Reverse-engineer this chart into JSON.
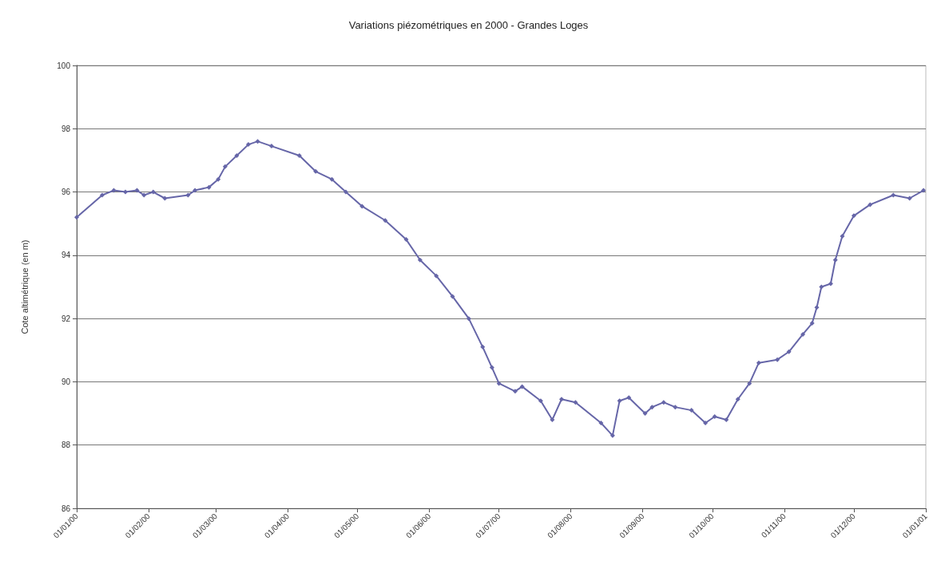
{
  "chart_data": {
    "type": "line",
    "title": "Variations piézométriques en 2000 - Grandes Loges",
    "ylabel": "Cote altimétrique (en m)",
    "x": [
      "2000-01-01",
      "2000-01-12",
      "2000-01-17",
      "2000-01-22",
      "2000-01-27",
      "2000-01-30",
      "2000-02-03",
      "2000-02-08",
      "2000-02-18",
      "2000-02-21",
      "2000-02-27",
      "2000-03-02",
      "2000-03-05",
      "2000-03-10",
      "2000-03-15",
      "2000-03-19",
      "2000-03-25",
      "2000-04-06",
      "2000-04-13",
      "2000-04-20",
      "2000-04-26",
      "2000-05-03",
      "2000-05-13",
      "2000-05-22",
      "2000-05-28",
      "2000-06-04",
      "2000-06-11",
      "2000-06-18",
      "2000-06-24",
      "2000-06-28",
      "2000-07-01",
      "2000-07-08",
      "2000-07-11",
      "2000-07-19",
      "2000-07-24",
      "2000-07-28",
      "2000-08-03",
      "2000-08-14",
      "2000-08-19",
      "2000-08-22",
      "2000-08-26",
      "2000-09-02",
      "2000-09-05",
      "2000-09-10",
      "2000-09-15",
      "2000-09-22",
      "2000-09-28",
      "2000-10-02",
      "2000-10-07",
      "2000-10-12",
      "2000-10-17",
      "2000-10-21",
      "2000-10-29",
      "2000-11-03",
      "2000-11-09",
      "2000-11-13",
      "2000-11-15",
      "2000-11-17",
      "2000-11-21",
      "2000-11-23",
      "2000-11-26",
      "2000-12-01",
      "2000-12-08",
      "2000-12-18",
      "2000-12-25",
      "2000-12-31"
    ],
    "series": [
      {
        "color": "#6666a8",
        "values": [
          95.2,
          95.9,
          96.05,
          96.0,
          96.05,
          95.9,
          96.0,
          95.8,
          95.9,
          96.05,
          96.15,
          96.4,
          96.8,
          97.15,
          97.5,
          97.6,
          97.45,
          97.15,
          96.65,
          96.4,
          96.0,
          95.55,
          95.1,
          94.5,
          93.85,
          93.35,
          92.7,
          92.0,
          91.1,
          90.45,
          89.95,
          89.7,
          89.85,
          89.4,
          88.8,
          89.45,
          89.35,
          88.7,
          88.3,
          89.4,
          89.5,
          89.0,
          89.2,
          89.35,
          89.2,
          89.1,
          88.7,
          88.9,
          88.8,
          89.45,
          89.95,
          90.6,
          90.7,
          90.95,
          91.5,
          91.85,
          92.35,
          93.0,
          93.1,
          93.85,
          94.6,
          95.25,
          95.6,
          95.9,
          95.8,
          96.05
        ]
      }
    ],
    "xlim": [
      "2000-01-01",
      "2001-01-01"
    ],
    "xticks": [
      {
        "value": "2000-01-01",
        "label": "01/01/00"
      },
      {
        "value": "2000-02-01",
        "label": "01/02/00"
      },
      {
        "value": "2000-03-01",
        "label": "01/03/00"
      },
      {
        "value": "2000-04-01",
        "label": "01/04/00"
      },
      {
        "value": "2000-05-01",
        "label": "01/05/00"
      },
      {
        "value": "2000-06-01",
        "label": "01/06/00"
      },
      {
        "value": "2000-07-01",
        "label": "01/07/00"
      },
      {
        "value": "2000-08-01",
        "label": "01/08/00"
      },
      {
        "value": "2000-09-01",
        "label": "01/09/00"
      },
      {
        "value": "2000-10-01",
        "label": "01/10/00"
      },
      {
        "value": "2000-11-01",
        "label": "01/11/00"
      },
      {
        "value": "2000-12-01",
        "label": "01/12/00"
      },
      {
        "value": "2001-01-01",
        "label": "01/01/01"
      }
    ],
    "ylim": [
      86,
      100
    ],
    "yticks": [
      86,
      88,
      90,
      92,
      94,
      96,
      98,
      100
    ],
    "grid": "y",
    "marker": "diamond",
    "line_style": "solid"
  }
}
